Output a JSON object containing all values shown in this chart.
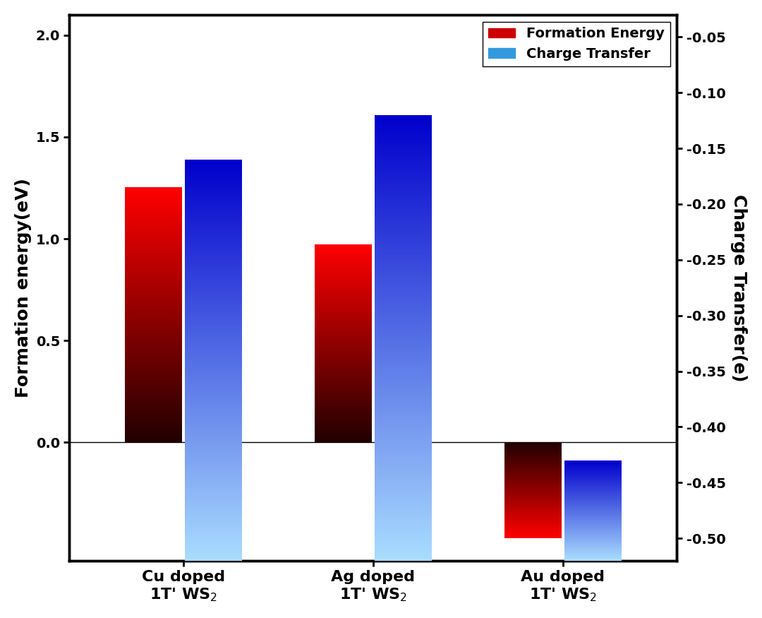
{
  "categories": [
    "Cu doped\n1T' WS$_2$",
    "Ag doped\n1T' WS$_2$",
    "Au doped\n1T' WS$_2$"
  ],
  "formation_energy": [
    1.25,
    0.97,
    -0.47
  ],
  "charge_transfer": [
    -0.16,
    -0.12,
    -0.43
  ],
  "left_ylim": [
    -0.58,
    2.1
  ],
  "right_ylim": [
    -0.52,
    -0.03
  ],
  "right_yticks": [
    -0.05,
    -0.1,
    -0.15,
    -0.2,
    -0.25,
    -0.3,
    -0.35,
    -0.4,
    -0.45,
    -0.5
  ],
  "left_yticks": [
    0.0,
    0.5,
    1.0,
    1.5,
    2.0
  ],
  "left_ylabel": "Formation energy(eV)",
  "right_ylabel": "Charge Transfer(e)",
  "legend_labels": [
    "Formation Energy",
    "Charge Transfer"
  ],
  "bar_width": 0.3,
  "background_color": "#ffffff",
  "axis_fontsize": 17,
  "tick_fontsize": 14,
  "legend_fontsize": 13,
  "red_top": "#ff0000",
  "red_bottom": "#220000",
  "blue_top_dark": "#0000cc",
  "blue_bottom_light": "#aaddff"
}
